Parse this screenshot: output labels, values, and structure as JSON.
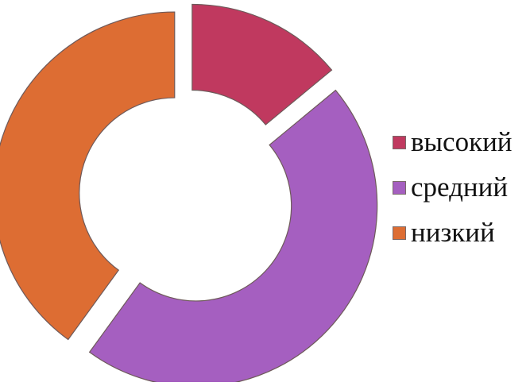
{
  "chart_data": {
    "type": "pie",
    "style": "exploded-doughnut",
    "title": "",
    "categories": [
      "высокий",
      "средний",
      "низкий"
    ],
    "values": [
      14,
      46,
      40
    ],
    "colors": [
      "#c0395f",
      "#a55fc0",
      "#dd6d33"
    ],
    "legend": {
      "position": "right",
      "items": [
        {
          "label": "высокий",
          "color": "#c0395f"
        },
        {
          "label": "средний",
          "color": "#a55fc0"
        },
        {
          "label": "низкий",
          "color": "#dd6d33"
        }
      ]
    }
  }
}
